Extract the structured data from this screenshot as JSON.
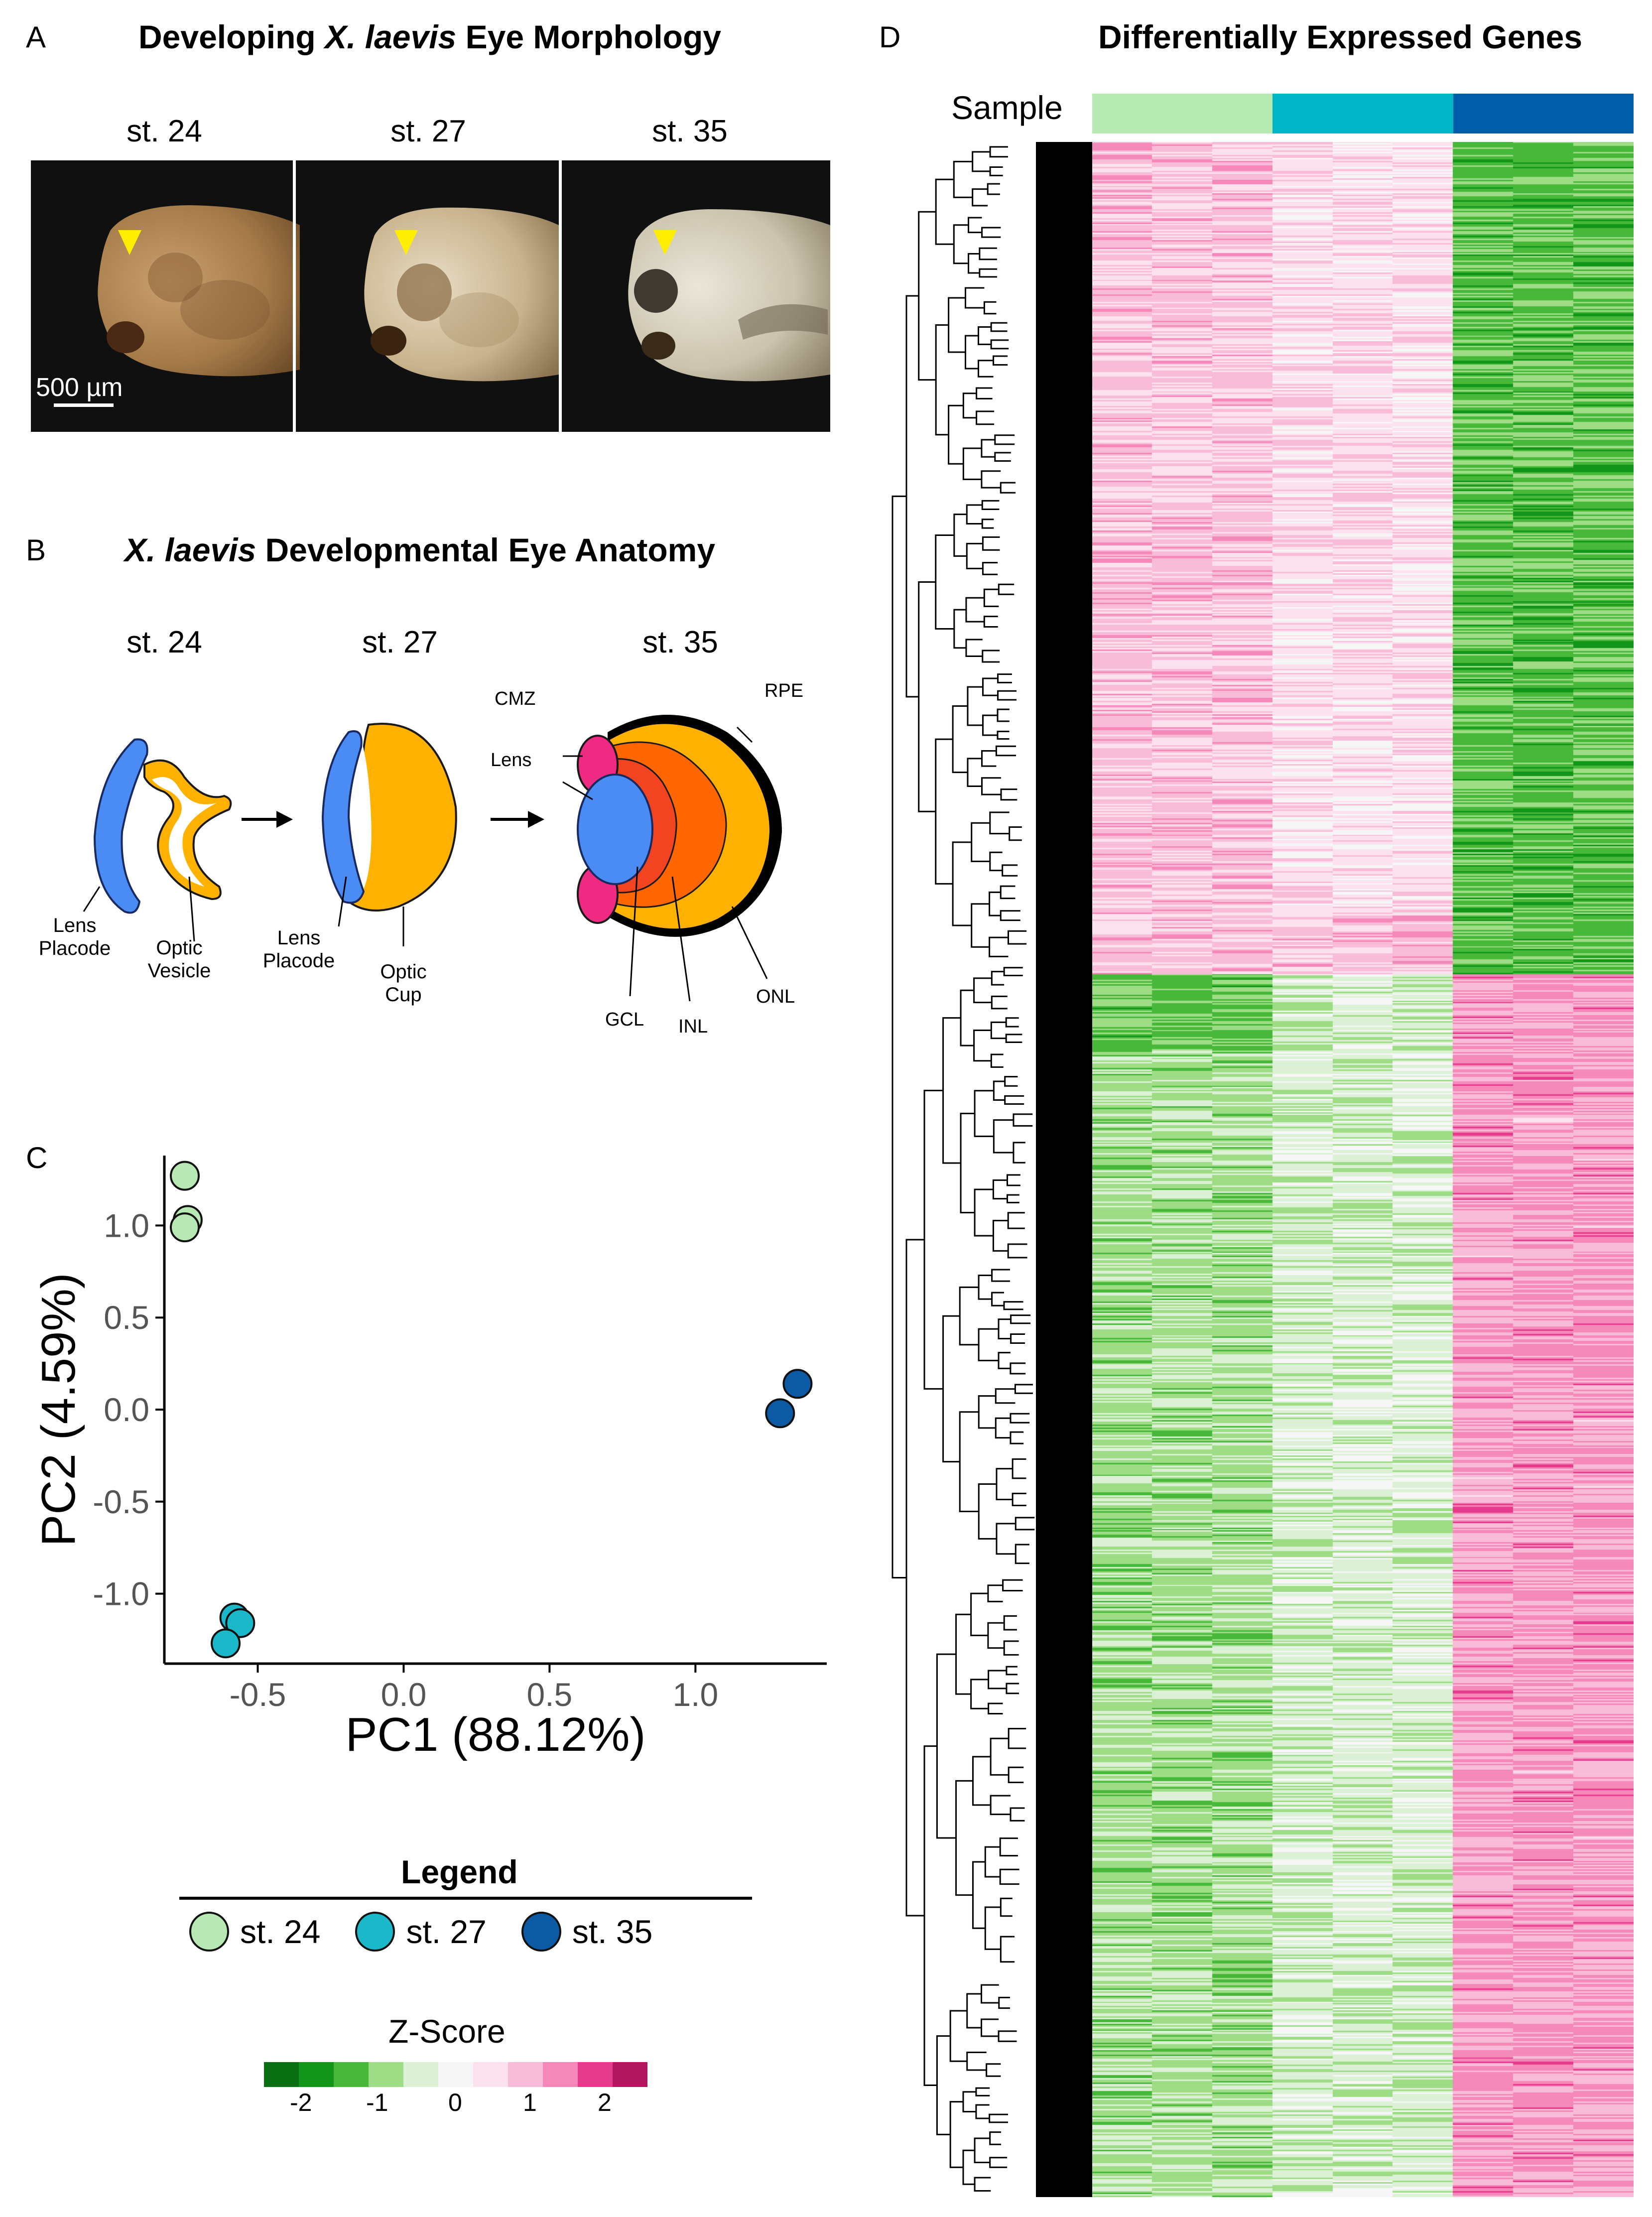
{
  "panels": {
    "A": {
      "letter": "A",
      "title_bold1": "Developing ",
      "title_italic": "X. laevis",
      "title_bold2": " Eye Morphology",
      "stages": [
        "st. 24",
        "st. 27",
        "st. 35"
      ],
      "scale_bar": "500 µm"
    },
    "B": {
      "letter": "B",
      "title_italic": "X. laevis",
      "title_bold": " Developmental Eye Anatomy",
      "stages": [
        "st. 24",
        "st. 27",
        "st. 35"
      ],
      "labels": {
        "lens_placode_1": [
          "Lens",
          "Placode"
        ],
        "optic_vesicle": [
          "Optic",
          "Vesicle"
        ],
        "lens_placode_2": [
          "Lens",
          "Placode"
        ],
        "optic_cup": [
          "Optic",
          "Cup"
        ],
        "cmz": "CMZ",
        "lens": "Lens",
        "rpe": "RPE",
        "gcl": "GCL",
        "inl": "INL",
        "onl": "ONL"
      }
    },
    "C": {
      "letter": "C",
      "legend": {
        "title": "Legend",
        "items": [
          {
            "label": "st. 24",
            "color": "#b8e8b4"
          },
          {
            "label": "st. 27",
            "color": "#1ab8c8"
          },
          {
            "label": "st. 35",
            "color": "#0d5aa4"
          }
        ]
      },
      "zscore": {
        "title": "Z-Score",
        "ticks": [
          "-2",
          "-1",
          "0",
          "1",
          "2"
        ],
        "colors": [
          "#0a6e12",
          "#12961a",
          "#48b83a",
          "#9edc86",
          "#dbf0d4",
          "#f6f6f6",
          "#fce2ee",
          "#f9bcd8",
          "#f488b8",
          "#e63a8c",
          "#b0175e"
        ]
      }
    },
    "D": {
      "letter": "D",
      "title": "Differentially Expressed Genes",
      "sample_label": "Sample",
      "sample_colors": [
        "#b6eab0",
        "#00b5c6",
        "#005ea8"
      ]
    }
  },
  "chart_data": {
    "type": "scatter",
    "title": "",
    "xlabel": "PC1 (88.12%)",
    "ylabel": "PC2 (4.59%)",
    "xlim": [
      -0.82,
      1.45
    ],
    "ylim": [
      -1.38,
      1.38
    ],
    "xticks": [
      -0.5,
      0.0,
      0.5,
      1.0
    ],
    "xtick_labels": [
      "-0.5",
      "0.0",
      "0.5",
      "1.0"
    ],
    "yticks": [
      -1.0,
      -0.5,
      0.0,
      0.5,
      1.0
    ],
    "ytick_labels": [
      "-1.0",
      "-0.5",
      "0.0",
      "0.5",
      "1.0"
    ],
    "series": [
      {
        "name": "st. 24",
        "color": "#b8e8b4",
        "points": [
          [
            -0.75,
            1.27
          ],
          [
            -0.74,
            1.03
          ],
          [
            -0.75,
            0.99
          ]
        ]
      },
      {
        "name": "st. 27",
        "color": "#1ab8c8",
        "points": [
          [
            -0.58,
            -1.13
          ],
          [
            -0.56,
            -1.16
          ],
          [
            -0.61,
            -1.27
          ]
        ]
      },
      {
        "name": "st. 35",
        "color": "#0d5aa4",
        "points": [
          [
            1.35,
            0.14
          ],
          [
            1.29,
            -0.02
          ]
        ]
      }
    ]
  }
}
